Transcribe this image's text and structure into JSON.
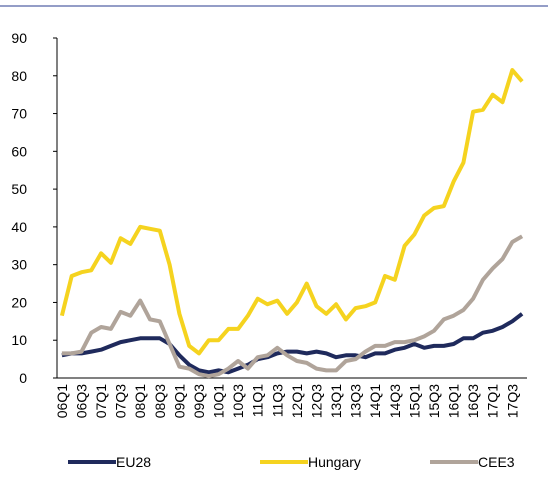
{
  "chart_data": {
    "type": "line",
    "categories": [
      "06Q1",
      null,
      "06Q3",
      null,
      "07Q1",
      null,
      "07Q3",
      null,
      "08Q1",
      null,
      "08Q3",
      null,
      "09Q1",
      null,
      "09Q3",
      null,
      "10Q1",
      null,
      "10Q3",
      null,
      "11Q1",
      null,
      "11Q3",
      null,
      "12Q1",
      null,
      "12Q3",
      null,
      "13Q1",
      null,
      "13Q3",
      null,
      "14Q1",
      null,
      "14Q3",
      null,
      "15Q1",
      null,
      "15Q3",
      null,
      "16Q1",
      null,
      "16Q3",
      null,
      "17Q1",
      null,
      "17Q3",
      null
    ],
    "series": [
      {
        "name": "EU28",
        "color": "#1f2a5c",
        "values": [
          6,
          6.5,
          6.5,
          7,
          7.5,
          8.5,
          9.5,
          10,
          10.5,
          10.5,
          10.5,
          9,
          6,
          3.5,
          2,
          1.5,
          2,
          1.5,
          2.5,
          3.5,
          5,
          5.5,
          6.5,
          7,
          7,
          6.5,
          7,
          6.5,
          5.5,
          6,
          6,
          5.5,
          6.5,
          6.5,
          7.5,
          8,
          9,
          8,
          8.5,
          8.5,
          9,
          10.5,
          10.5,
          12,
          12.5,
          13.5,
          15,
          17
        ]
      },
      {
        "name": "Hungary",
        "color": "#f5d31f",
        "values": [
          16.5,
          27,
          28,
          28.5,
          33,
          30.5,
          37,
          35.5,
          40,
          39.5,
          39,
          30,
          17,
          8.5,
          6.5,
          10,
          10,
          13,
          13,
          16.5,
          21,
          19.5,
          20.5,
          17,
          20,
          25,
          19,
          17,
          19.5,
          15.5,
          18.5,
          19,
          20,
          27,
          26,
          35,
          38,
          43,
          45,
          45.5,
          52,
          57,
          70.5,
          71,
          75,
          73,
          81.5,
          78.5
        ]
      },
      {
        "name": "CEE3",
        "color": "#b0a49a",
        "values": [
          6.5,
          6.5,
          7,
          12,
          13.5,
          13,
          17.5,
          16.5,
          20.5,
          15.5,
          15,
          9,
          3,
          2.5,
          1,
          0.5,
          1,
          2.5,
          4.5,
          2.5,
          5.5,
          6,
          8,
          6,
          4.5,
          4,
          2.5,
          2,
          2,
          4.5,
          5,
          7,
          8.5,
          8.5,
          9.5,
          9.5,
          10,
          11,
          12.5,
          15.5,
          16.5,
          18,
          21,
          26,
          29,
          31.5,
          36,
          37.5
        ]
      }
    ],
    "ylim": [
      0,
      90
    ],
    "yticks": [
      0,
      10,
      20,
      30,
      40,
      50,
      60,
      70,
      80,
      90
    ]
  }
}
